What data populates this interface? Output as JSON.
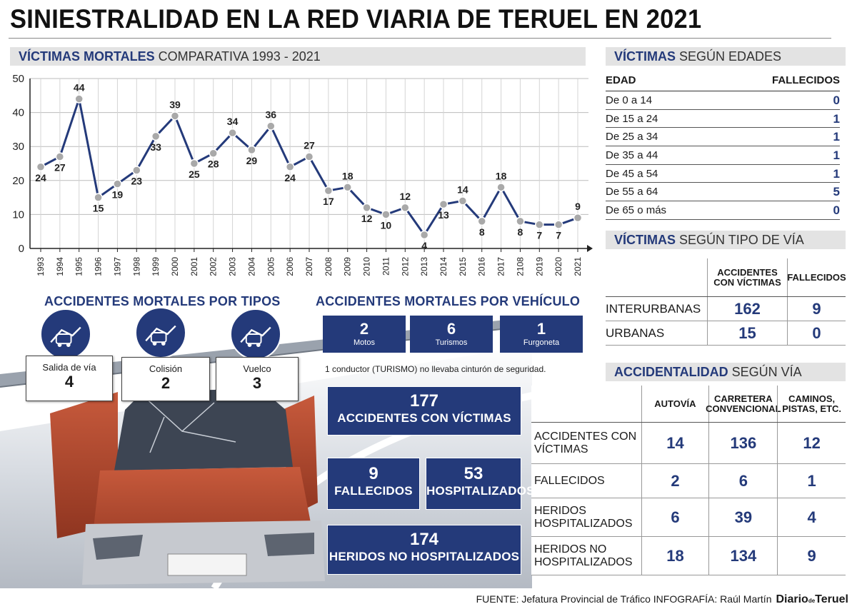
{
  "title": "SINIESTRALIDAD EN LA RED VIARIA DE TERUEL EN 2021",
  "deaths_section": {
    "bold": "VÍCTIMAS MORTALES",
    "rest": " COMPARATIVA 1993 - 2021"
  },
  "chart_data": {
    "type": "line",
    "x": [
      "1993",
      "1994",
      "1995",
      "1996",
      "1997",
      "1998",
      "1999",
      "2000",
      "2001",
      "2002",
      "2003",
      "2004",
      "2005",
      "2006",
      "2007",
      "2008",
      "2009",
      "2010",
      "2011",
      "2012",
      "2013",
      "2014",
      "2015",
      "2016",
      "2017",
      "2108",
      "2019",
      "2020",
      "2021"
    ],
    "values": [
      24,
      27,
      44,
      15,
      19,
      23,
      33,
      39,
      25,
      28,
      34,
      29,
      36,
      24,
      27,
      17,
      18,
      12,
      10,
      12,
      4,
      13,
      14,
      8,
      18,
      8,
      7,
      7,
      9
    ],
    "ylim": [
      0,
      50
    ],
    "yticks": [
      0,
      10,
      20,
      30,
      40,
      50
    ],
    "title": "",
    "xlabel": "",
    "ylabel": "",
    "grid": true,
    "colors": {
      "line": "#243a7a",
      "marker": "#a9a9a9"
    }
  },
  "age_section": {
    "bold": "VÍCTIMAS",
    "rest": " SEGÚN EDADES"
  },
  "age_table": {
    "headers": [
      "EDAD",
      "FALLECIDOS"
    ],
    "rows": [
      {
        "label": "De 0 a 14",
        "value": "0"
      },
      {
        "label": "De 15 a 24",
        "value": "1"
      },
      {
        "label": "De 25 a 34",
        "value": "1"
      },
      {
        "label": "De 35 a 44",
        "value": "1"
      },
      {
        "label": "De 45 a 54",
        "value": "1"
      },
      {
        "label": "De 55 a 64",
        "value": "5"
      },
      {
        "label": "De 65 o más",
        "value": "0"
      }
    ]
  },
  "road_section": {
    "bold": "VÍCTIMAS",
    "rest": " SEGÚN TIPO DE VÍA"
  },
  "road_table": {
    "headers": [
      "ACCIDENTES CON VÍCTIMAS",
      "FALLECIDOS"
    ],
    "rows": [
      {
        "label": "INTERURBANAS",
        "accidents": "162",
        "deaths": "9"
      },
      {
        "label": "URBANAS",
        "accidents": "15",
        "deaths": "0"
      }
    ]
  },
  "acc_section": {
    "bold": "ACCIDENTALIDAD",
    "rest": " SEGÚN VÍA"
  },
  "acc_table": {
    "headers": [
      "AUTOVÍA",
      "CARRETERA CONVENCIONAL",
      "CAMINOS, PISTAS, ETC."
    ],
    "rows": [
      {
        "label": "ACCIDENTES CON VÍCTIMAS",
        "v": [
          "14",
          "136",
          "12"
        ]
      },
      {
        "label": "FALLECIDOS",
        "v": [
          "2",
          "6",
          "1"
        ]
      },
      {
        "label": "HERIDOS HOSPITALIZADOS",
        "v": [
          "6",
          "39",
          "4"
        ]
      },
      {
        "label": "HERIDOS NO HOSPITALIZADOS",
        "v": [
          "18",
          "134",
          "9"
        ]
      }
    ]
  },
  "types": {
    "title": "ACCIDENTES MORTALES POR TIPOS",
    "items": [
      {
        "label": "Salida de vía",
        "value": "4",
        "icon": "road-exit-icon"
      },
      {
        "label": "Colisión",
        "value": "2",
        "icon": "collision-icon"
      },
      {
        "label": "Vuelco",
        "value": "3",
        "icon": "rollover-icon"
      }
    ]
  },
  "vehicles": {
    "title": "ACCIDENTES MORTALES POR VEHÍCULO",
    "items": [
      {
        "value": "2",
        "label": "Motos"
      },
      {
        "value": "6",
        "label": "Turismos"
      },
      {
        "value": "1",
        "label": "Furgoneta"
      }
    ],
    "note": "1 conductor (TURISMO) no llevaba cinturón de seguridad."
  },
  "totals": {
    "accidents": {
      "value": "177",
      "label": "ACCIDENTES CON VÍCTIMAS"
    },
    "deaths": {
      "value": "9",
      "label": "FALLECIDOS"
    },
    "hospitalized": {
      "value": "53",
      "label": "HOSPITALIZADOS"
    },
    "not_hospitalized": {
      "value": "174",
      "label": "HERIDOS NO HOSPITALIZADOS"
    }
  },
  "footer": {
    "source": "FUENTE: Jefatura Provincial de Tráfico INFOGRAFÍA: Raúl Martín",
    "logo_a": "Diario",
    "logo_b": "de",
    "logo_c": "Teruel"
  },
  "colors": {
    "navy": "#243a7a",
    "head_bg": "#e3e3e3",
    "car": "#b5482c"
  }
}
